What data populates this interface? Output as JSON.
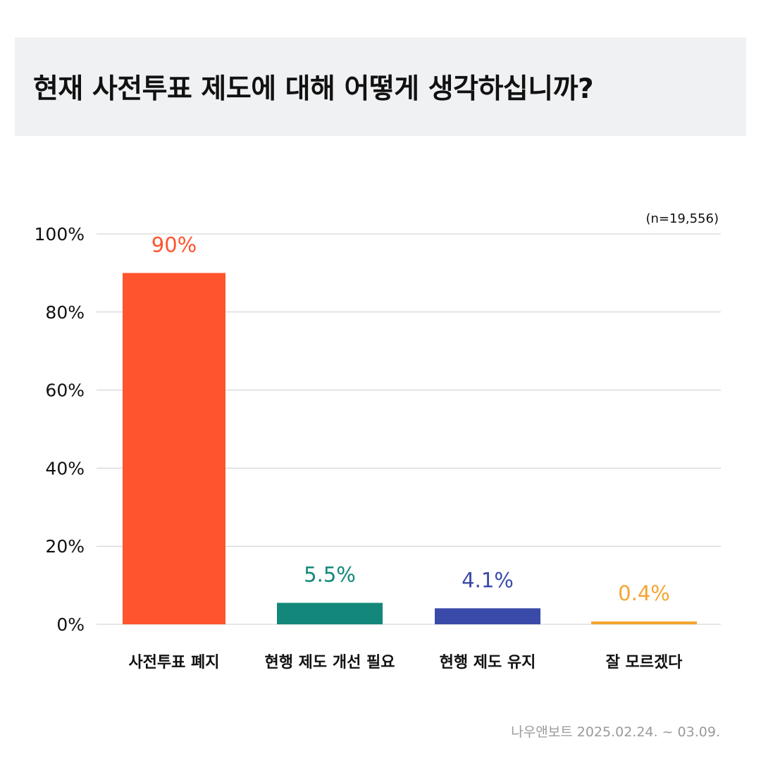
{
  "title": "현재 사전투표 제도에 대해 어떻게 생각하십니까?",
  "sample_size": "(n=19,556)",
  "source": "나우앤보트 2025.02.24. ~ 03.09.",
  "chart_data": {
    "type": "bar",
    "categories": [
      "사전투표 폐지",
      "현행 제도 개선 필요",
      "현행 제도 유지",
      "잘 모르겠다"
    ],
    "values": [
      90,
      5.5,
      4.1,
      0.4
    ],
    "value_labels": [
      "90%",
      "5.5%",
      "4.1%",
      "0.4%"
    ],
    "colors": [
      "#ff542e",
      "#13887a",
      "#3a4aa8",
      "#f5a531"
    ],
    "ylim": [
      0,
      100
    ],
    "yticks": [
      0,
      20,
      40,
      60,
      80,
      100
    ],
    "ytick_labels": [
      "0%",
      "20%",
      "40%",
      "60%",
      "80%",
      "100%"
    ],
    "grid": true,
    "gridline_color": "#cccccc",
    "xlabel": "",
    "ylabel": ""
  }
}
